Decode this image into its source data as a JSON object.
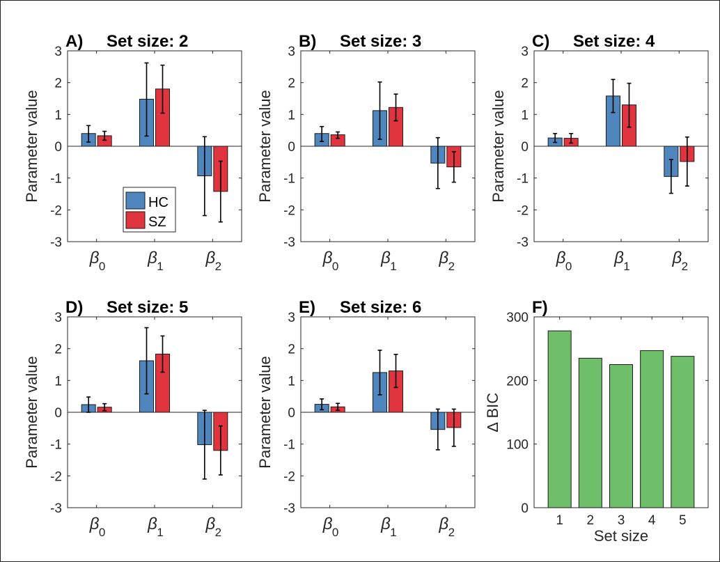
{
  "colors": {
    "HC": "#4f86bd",
    "SZ": "#e0353f",
    "dbic": "#6ebe6a",
    "axis": "#262626"
  },
  "legend": {
    "HC": "HC",
    "SZ": "SZ"
  },
  "chart_data": [
    {
      "type": "bar",
      "panel": "A)",
      "title": "Set size: 2",
      "ylabel": "Parameter value",
      "ylim": [
        -3,
        3
      ],
      "yticks": [
        "-3",
        "-2",
        "-1",
        "0",
        "1",
        "2",
        "3"
      ],
      "categories": [
        {
          "sym": "β",
          "sub": "0"
        },
        {
          "sym": "β",
          "sub": "1"
        },
        {
          "sym": "β",
          "sub": "2"
        }
      ],
      "series": [
        {
          "name": "HC",
          "values": [
            0.4,
            1.48,
            -0.93
          ],
          "err": [
            [
              0.13,
              0.65
            ],
            [
              0.32,
              2.62
            ],
            [
              -2.18,
              0.3
            ]
          ]
        },
        {
          "name": "SZ",
          "values": [
            0.33,
            1.8,
            -1.42
          ],
          "err": [
            [
              0.19,
              0.47
            ],
            [
              1.04,
              2.55
            ],
            [
              -2.38,
              -0.47
            ]
          ]
        }
      ]
    },
    {
      "type": "bar",
      "panel": "B)",
      "title": "Set size: 3",
      "ylabel": "Parameter value",
      "ylim": [
        -3,
        3
      ],
      "yticks": [
        "-3",
        "-2",
        "-1",
        "0",
        "1",
        "2",
        "3"
      ],
      "categories": [
        {
          "sym": "β",
          "sub": "0"
        },
        {
          "sym": "β",
          "sub": "1"
        },
        {
          "sym": "β",
          "sub": "2"
        }
      ],
      "series": [
        {
          "name": "HC",
          "values": [
            0.4,
            1.12,
            -0.53
          ],
          "err": [
            [
              0.15,
              0.62
            ],
            [
              0.22,
              2.02
            ],
            [
              -1.33,
              0.27
            ]
          ]
        },
        {
          "name": "SZ",
          "values": [
            0.36,
            1.22,
            -0.65
          ],
          "err": [
            [
              0.25,
              0.45
            ],
            [
              0.8,
              1.64
            ],
            [
              -1.13,
              -0.17
            ]
          ]
        }
      ]
    },
    {
      "type": "bar",
      "panel": "C)",
      "title": "Set size: 4",
      "ylabel": "Parameter value",
      "ylim": [
        -3,
        3
      ],
      "yticks": [
        "-3",
        "-2",
        "-1",
        "0",
        "1",
        "2",
        "3"
      ],
      "categories": [
        {
          "sym": "β",
          "sub": "0"
        },
        {
          "sym": "β",
          "sub": "1"
        },
        {
          "sym": "β",
          "sub": "2"
        }
      ],
      "series": [
        {
          "name": "HC",
          "values": [
            0.26,
            1.58,
            -0.95
          ],
          "err": [
            [
              0.12,
              0.4
            ],
            [
              1.06,
              2.1
            ],
            [
              -1.48,
              -0.42
            ]
          ]
        },
        {
          "name": "SZ",
          "values": [
            0.25,
            1.3,
            -0.48
          ],
          "err": [
            [
              0.1,
              0.4
            ],
            [
              0.6,
              1.98
            ],
            [
              -1.25,
              0.29
            ]
          ]
        }
      ]
    },
    {
      "type": "bar",
      "panel": "D)",
      "title": "Set size: 5",
      "ylabel": "Parameter value",
      "ylim": [
        -3,
        3
      ],
      "yticks": [
        "-3",
        "-2",
        "-1",
        "0",
        "1",
        "2",
        "3"
      ],
      "categories": [
        {
          "sym": "β",
          "sub": "0"
        },
        {
          "sym": "β",
          "sub": "1"
        },
        {
          "sym": "β",
          "sub": "2"
        }
      ],
      "series": [
        {
          "name": "HC",
          "values": [
            0.24,
            1.62,
            -1.02
          ],
          "err": [
            [
              0.0,
              0.48
            ],
            [
              0.58,
              2.66
            ],
            [
              -2.1,
              0.06
            ]
          ]
        },
        {
          "name": "SZ",
          "values": [
            0.16,
            1.83,
            -1.2
          ],
          "err": [
            [
              0.05,
              0.27
            ],
            [
              1.26,
              2.4
            ],
            [
              -1.97,
              -0.43
            ]
          ]
        }
      ]
    },
    {
      "type": "bar",
      "panel": "E)",
      "title": "Set size: 6",
      "ylabel": "Parameter value",
      "ylim": [
        -3,
        3
      ],
      "yticks": [
        "-3",
        "-2",
        "-1",
        "0",
        "1",
        "2",
        "3"
      ],
      "categories": [
        {
          "sym": "β",
          "sub": "0"
        },
        {
          "sym": "β",
          "sub": "1"
        },
        {
          "sym": "β",
          "sub": "2"
        }
      ],
      "series": [
        {
          "name": "HC",
          "values": [
            0.25,
            1.25,
            -0.54
          ],
          "err": [
            [
              0.08,
              0.42
            ],
            [
              0.55,
              1.95
            ],
            [
              -1.18,
              0.1
            ]
          ]
        },
        {
          "name": "SZ",
          "values": [
            0.17,
            1.3,
            -0.48
          ],
          "err": [
            [
              0.06,
              0.28
            ],
            [
              0.78,
              1.82
            ],
            [
              -1.07,
              0.1
            ]
          ]
        }
      ]
    },
    {
      "type": "bar",
      "panel": "F)",
      "title": "",
      "ylabel": "∆ BIC",
      "xlabel": "Set size",
      "ylim": [
        0,
        300
      ],
      "yticks": [
        "0",
        "100",
        "200",
        "300"
      ],
      "categories": [
        "1",
        "2",
        "3",
        "4",
        "5"
      ],
      "values": [
        278,
        235,
        225,
        247,
        238
      ]
    }
  ]
}
